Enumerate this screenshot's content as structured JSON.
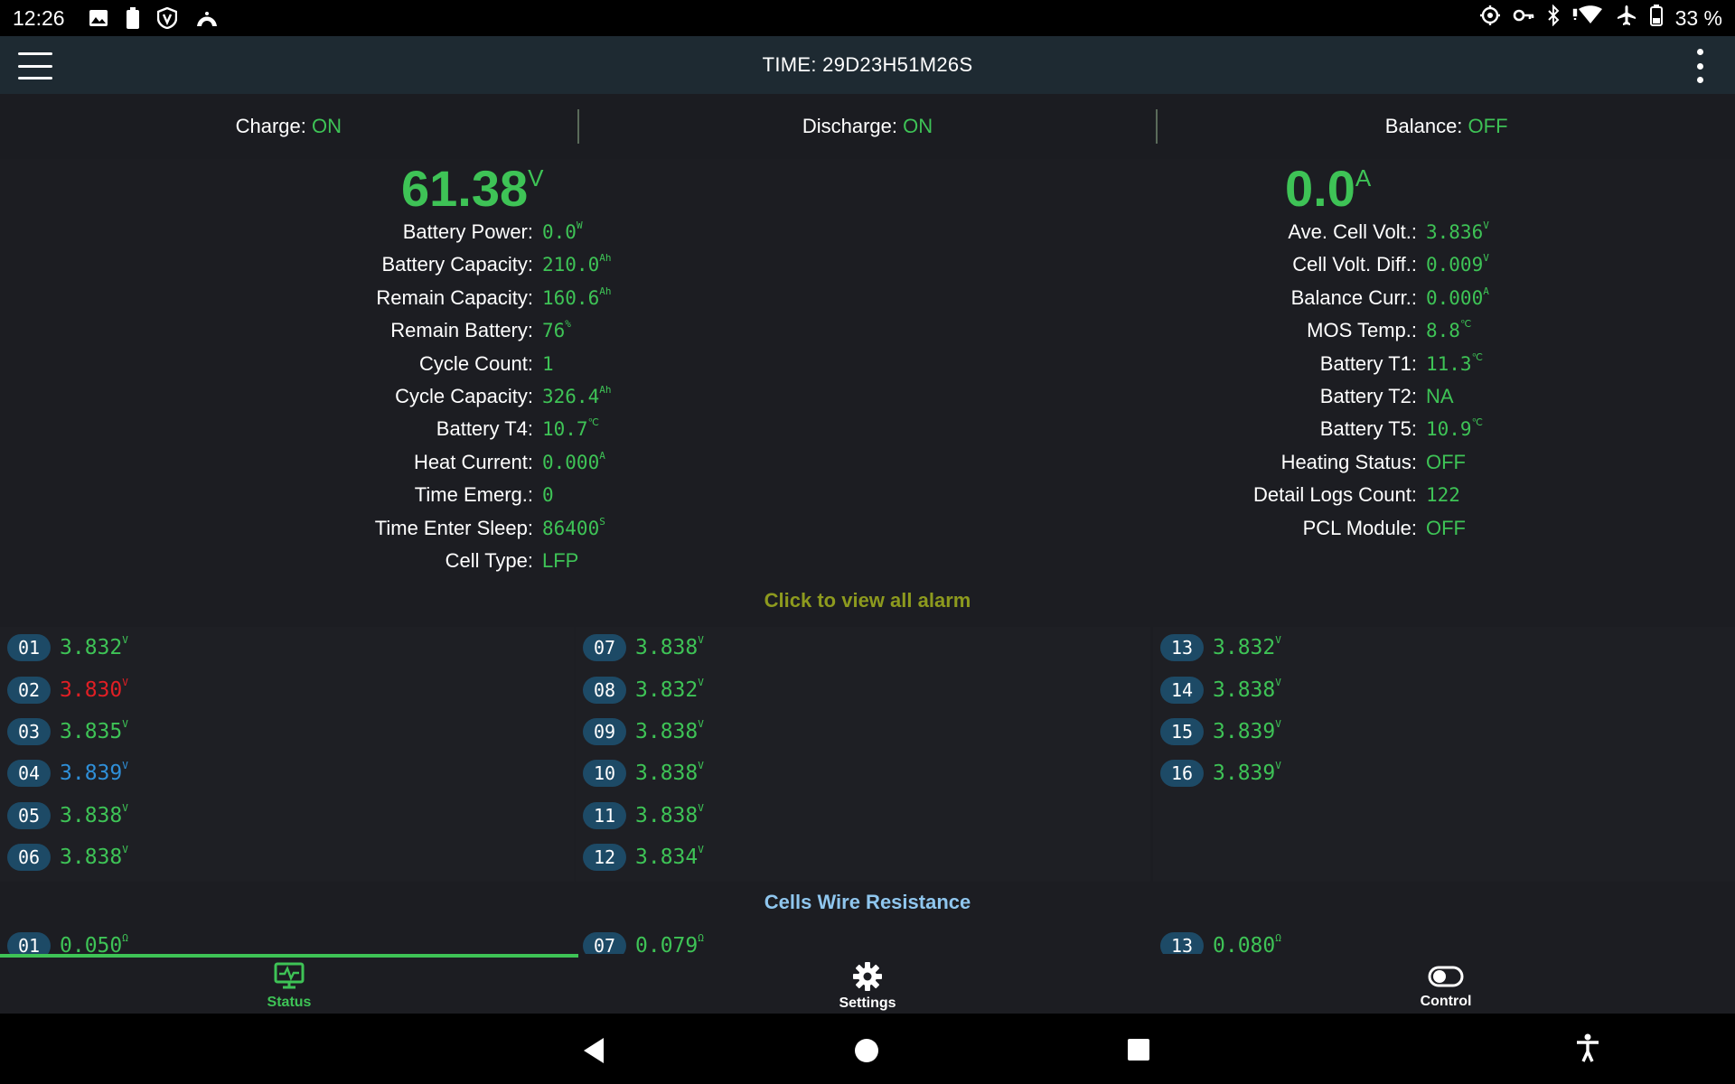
{
  "status_bar": {
    "time": "12:26",
    "battery_percent": "33 %",
    "left_icons": [
      "image-icon",
      "battery-saver-icon",
      "shield-icon",
      "vpn-arch-icon"
    ],
    "right_icons": [
      "location-target-icon",
      "key-icon",
      "bluetooth-icon",
      "wifi-icon",
      "airplane-icon",
      "battery-icon"
    ]
  },
  "app_bar": {
    "title": "TIME: 29D23H51M26S"
  },
  "switches": {
    "charge_label": "Charge:",
    "charge_value": "ON",
    "discharge_label": "Discharge:",
    "discharge_value": "ON",
    "balance_label": "Balance:",
    "balance_value": "OFF"
  },
  "main": {
    "voltage": "61.38",
    "voltage_unit": "V",
    "current": "0.0",
    "current_unit": "A",
    "left_rows": [
      {
        "label": "Battery Power:",
        "value": "0.0",
        "unit": "W"
      },
      {
        "label": "Battery Capacity:",
        "value": "210.0",
        "unit": "Ah"
      },
      {
        "label": "Remain Capacity:",
        "value": "160.6",
        "unit": "Ah"
      },
      {
        "label": "Remain Battery:",
        "value": "76",
        "unit": "%"
      },
      {
        "label": "Cycle Count:",
        "value": "1",
        "unit": ""
      },
      {
        "label": "Cycle Capacity:",
        "value": "326.4",
        "unit": "Ah"
      },
      {
        "label": "Battery T4:",
        "value": "10.7",
        "unit": "℃"
      },
      {
        "label": "Heat Current:",
        "value": "0.000",
        "unit": "A"
      },
      {
        "label": "Time Emerg.:",
        "value": "0",
        "unit": ""
      },
      {
        "label": "Time Enter Sleep:",
        "value": "86400",
        "unit": "S"
      },
      {
        "label": "Cell Type:",
        "value": "LFP",
        "unit": ""
      }
    ],
    "right_rows": [
      {
        "label": "Ave. Cell Volt.:",
        "value": "3.836",
        "unit": "V"
      },
      {
        "label": "Cell Volt. Diff.:",
        "value": "0.009",
        "unit": "V"
      },
      {
        "label": "Balance Curr.:",
        "value": "0.000",
        "unit": "A"
      },
      {
        "label": "MOS Temp.:",
        "value": "8.8",
        "unit": "℃"
      },
      {
        "label": "Battery T1:",
        "value": "11.3",
        "unit": "℃"
      },
      {
        "label": "Battery T2:",
        "value": "NA",
        "unit": ""
      },
      {
        "label": "Battery T5:",
        "value": "10.9",
        "unit": "℃"
      },
      {
        "label": "Heating Status:",
        "value": "OFF",
        "unit": ""
      },
      {
        "label": "Detail Logs Count:",
        "value": "122",
        "unit": ""
      },
      {
        "label": "PCL Module:",
        "value": "OFF",
        "unit": ""
      }
    ]
  },
  "alarm_link": "Click to view all alarm",
  "cells": {
    "unit": "V",
    "columns": [
      [
        {
          "num": "01",
          "value": "3.832",
          "state": "normal"
        },
        {
          "num": "02",
          "value": "3.830",
          "state": "low"
        },
        {
          "num": "03",
          "value": "3.835",
          "state": "normal"
        },
        {
          "num": "04",
          "value": "3.839",
          "state": "high"
        },
        {
          "num": "05",
          "value": "3.838",
          "state": "normal"
        },
        {
          "num": "06",
          "value": "3.838",
          "state": "normal"
        }
      ],
      [
        {
          "num": "07",
          "value": "3.838",
          "state": "normal"
        },
        {
          "num": "08",
          "value": "3.832",
          "state": "normal"
        },
        {
          "num": "09",
          "value": "3.838",
          "state": "normal"
        },
        {
          "num": "10",
          "value": "3.838",
          "state": "normal"
        },
        {
          "num": "11",
          "value": "3.838",
          "state": "normal"
        },
        {
          "num": "12",
          "value": "3.834",
          "state": "normal"
        }
      ],
      [
        {
          "num": "13",
          "value": "3.832",
          "state": "normal"
        },
        {
          "num": "14",
          "value": "3.838",
          "state": "normal"
        },
        {
          "num": "15",
          "value": "3.839",
          "state": "normal"
        },
        {
          "num": "16",
          "value": "3.839",
          "state": "normal"
        }
      ]
    ]
  },
  "wire_resistance": {
    "title": "Cells Wire Resistance",
    "unit": "Ω",
    "first_row": [
      {
        "num": "01",
        "value": "0.050"
      },
      {
        "num": "07",
        "value": "0.079"
      },
      {
        "num": "13",
        "value": "0.080"
      }
    ]
  },
  "tabs": [
    {
      "label": "Status",
      "icon": "monitor-pulse-icon",
      "active": true
    },
    {
      "label": "Settings",
      "icon": "gear-icon",
      "active": false
    },
    {
      "label": "Control",
      "icon": "toggle-icon",
      "active": false
    }
  ],
  "colors": {
    "accent_green": "#3ec356",
    "alarm_olive": "#8d9a1e",
    "low_red": "#e01f24",
    "high_blue": "#2f8fd8",
    "wire_title_blue": "#8fc6ee"
  }
}
